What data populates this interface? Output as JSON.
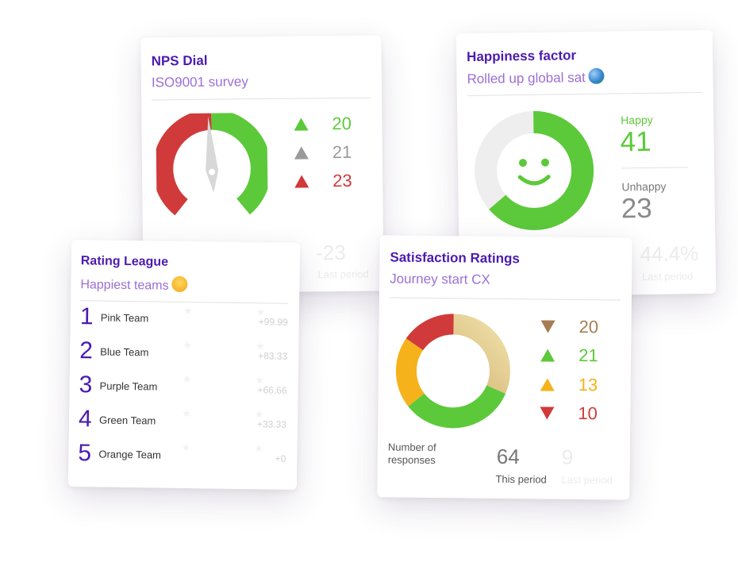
{
  "nps": {
    "title": "NPS Dial",
    "subtitle": "ISO9001 survey",
    "stats": [
      {
        "value": "20",
        "direction": "up",
        "color": "#5cc93a"
      },
      {
        "value": "21",
        "direction": "up",
        "color": "#9a9a9a"
      },
      {
        "value": "23",
        "direction": "up",
        "color": "#d03a3a"
      }
    ],
    "last_value": "-23",
    "last_label": "Last period"
  },
  "happiness": {
    "title": "Happiness factor",
    "subtitle": "Rolled up global sat",
    "happy_label": "Happy",
    "happy_value": "41",
    "unhappy_label": "Unhappy",
    "unhappy_value": "23",
    "last_value": "44.4%",
    "last_label": "Last period",
    "colors": {
      "happy": "#5cc93a",
      "unhappy": "#eeeeee"
    }
  },
  "league": {
    "title": "Rating League",
    "subtitle": "Happiest teams",
    "rows": [
      {
        "rank": "1",
        "name": "Pink Team",
        "score": "+99.99"
      },
      {
        "rank": "2",
        "name": "Blue Team",
        "score": "+83.33"
      },
      {
        "rank": "3",
        "name": "Purple Team",
        "score": "+66.66"
      },
      {
        "rank": "4",
        "name": "Green Team",
        "score": "+33.33"
      },
      {
        "rank": "5",
        "name": "Orange Team",
        "score": "+0"
      }
    ]
  },
  "satisfaction": {
    "title": "Satisfaction Ratings",
    "subtitle": "Journey start CX",
    "stats": [
      {
        "value": "20",
        "direction": "down",
        "color": "#a67c52"
      },
      {
        "value": "21",
        "direction": "up",
        "color": "#5cc93a"
      },
      {
        "value": "13",
        "direction": "up",
        "color": "#f5b21a"
      },
      {
        "value": "10",
        "direction": "down",
        "color": "#d03a3a"
      }
    ],
    "responses_label": "Number of\nresponses",
    "this_value": "64",
    "this_label": "This period",
    "last_value": "9",
    "last_label": "Last period"
  }
}
